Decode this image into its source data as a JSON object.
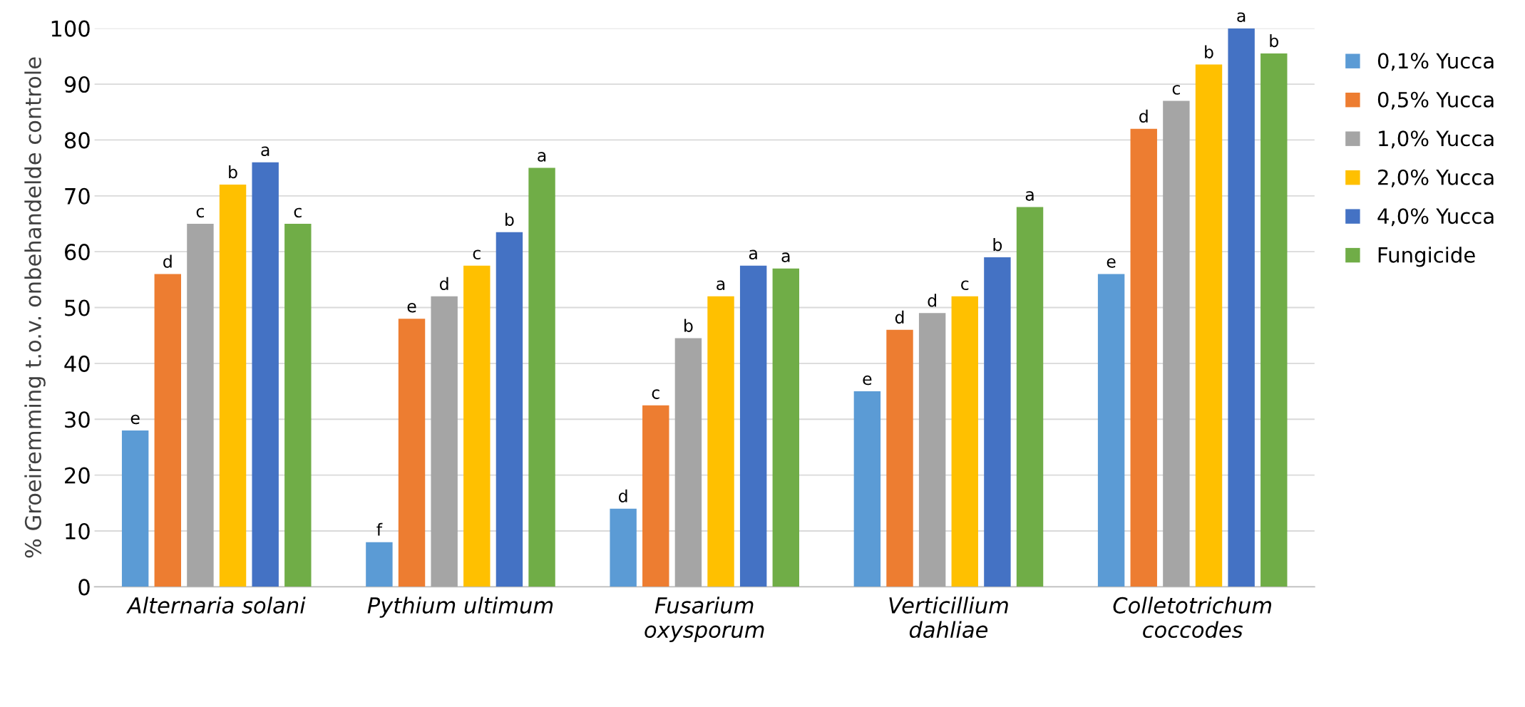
{
  "chart_data": {
    "type": "bar",
    "ylabel": "% Groeiremming t.o.v. onbehandelde controle",
    "categories": [
      "Alternaria solani",
      "Pythium ultimum",
      "Fusarium\noxysporum",
      "Verticillium\ndahliae",
      "Colletotrichum\ncoccodes"
    ],
    "series": [
      {
        "name": "0,1% Yucca",
        "color": "#5b9bd5",
        "values": [
          28,
          8,
          14,
          35,
          56
        ],
        "value_labels": [
          "e",
          "f",
          "d",
          "e",
          "e"
        ]
      },
      {
        "name": "0,5% Yucca",
        "color": "#ed7d31",
        "values": [
          56,
          48,
          32.5,
          46,
          82
        ],
        "value_labels": [
          "d",
          "e",
          "c",
          "d",
          "d"
        ]
      },
      {
        "name": "1,0% Yucca",
        "color": "#a5a5a5",
        "values": [
          65,
          52,
          44.5,
          49,
          87
        ],
        "value_labels": [
          "c",
          "d",
          "b",
          "d",
          "c"
        ]
      },
      {
        "name": "2,0% Yucca",
        "color": "#ffc000",
        "values": [
          72,
          57.5,
          52,
          52,
          93.5
        ],
        "value_labels": [
          "b",
          "c",
          "a",
          "c",
          "b"
        ]
      },
      {
        "name": "4,0% Yucca",
        "color": "#4472c4",
        "values": [
          76,
          63.5,
          57.5,
          59,
          100
        ],
        "value_labels": [
          "a",
          "b",
          "a",
          "b",
          "a"
        ]
      },
      {
        "name": "Fungicide",
        "color": "#70ad47",
        "values": [
          65,
          75,
          57,
          68,
          95.5
        ],
        "value_labels": [
          "c",
          "a",
          "a",
          "a",
          "b"
        ]
      }
    ],
    "ylim": [
      0,
      100
    ],
    "yticks": [
      0,
      10,
      20,
      30,
      40,
      50,
      60,
      70,
      80,
      90,
      100
    ],
    "grid": "y",
    "legend": "right"
  }
}
